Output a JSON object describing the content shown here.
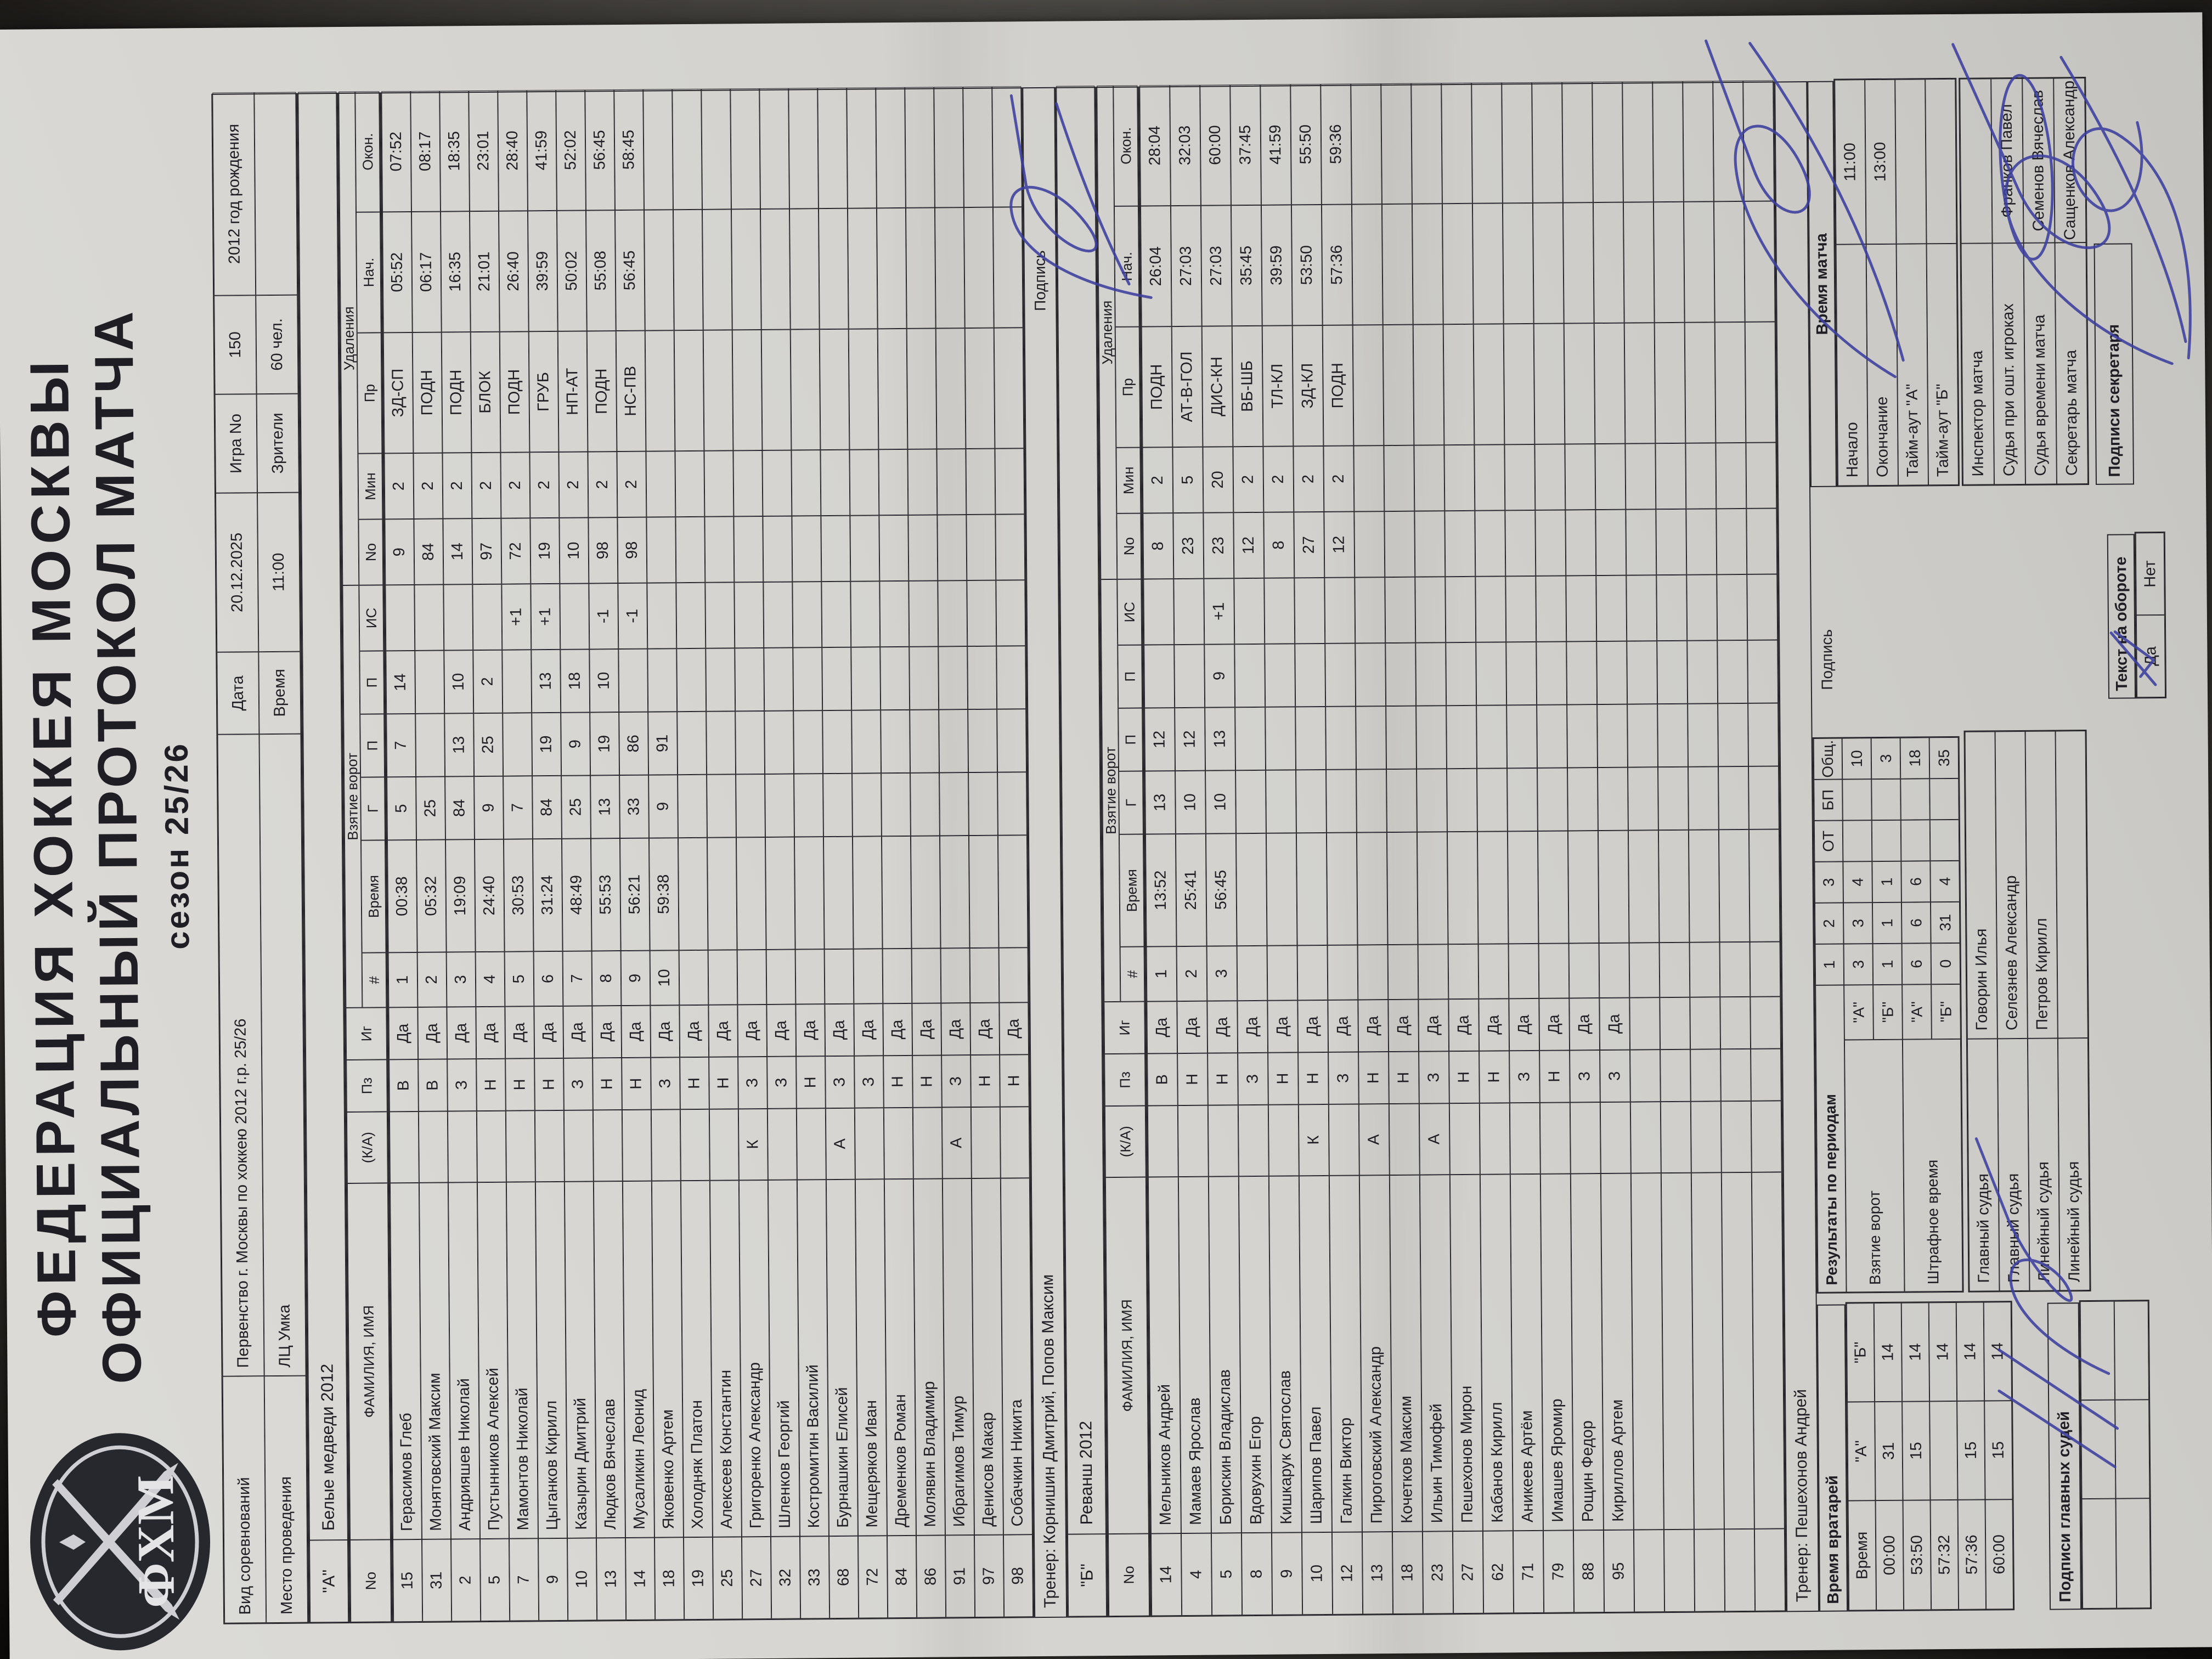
{
  "header": {
    "federation": "ФЕДЕРАЦИЯ ХОККЕЯ МОСКВЫ",
    "protocol": "ОФИЦИАЛЬНЫЙ ПРОТОКОЛ МАТЧА",
    "season": "сезон 25/26",
    "logo": "ФХМ"
  },
  "info": {
    "rows": [
      [
        "Вид соревнований",
        "Первенство г. Москвы по хоккею 2012 г.р. 25/26",
        "Дата",
        "20.12.2025",
        "Игра No",
        "150",
        "2012 год рождения"
      ],
      [
        "Место проведения",
        "ЛЦ Умка",
        "Время",
        "11:00",
        "Зрители",
        "60 чел.",
        ""
      ]
    ]
  },
  "columns": {
    "no": "No",
    "name": "ФАМИЛИЯ, ИМЯ",
    "ka": "(К/А)",
    "pz": "Пз",
    "ig": "Иг",
    "num": "#",
    "time": "Время",
    "g": "Г",
    "p1": "П",
    "p2": "П",
    "is": "ИС",
    "ud_no": "No",
    "min": "Мин",
    "pr": "Пр",
    "nach": "Нач.",
    "okon": "Окон.",
    "goals_group": "Взятие ворот",
    "penalties_group": "Удаления"
  },
  "labels": {
    "sign": "Подпись"
  },
  "team_a": {
    "letter": "\"А\"",
    "name": "Белые медведи 2012",
    "trainer": "Тренер: Корнишин Дмитрий, Попов Максим",
    "players": [
      [
        "15",
        "Герасимов Глеб",
        "",
        "В",
        "Да",
        "1",
        "00:38",
        "5",
        "7",
        "14",
        "",
        "9",
        "2",
        "ЗД-СП",
        "05:52",
        "07:52"
      ],
      [
        "31",
        "Монятовский Максим",
        "",
        "В",
        "Да",
        "2",
        "05:32",
        "25",
        "",
        "",
        "",
        "84",
        "2",
        "ПОДН",
        "06:17",
        "08:17"
      ],
      [
        "2",
        "Андрияшев Николай",
        "",
        "З",
        "Да",
        "3",
        "19:09",
        "84",
        "13",
        "10",
        "",
        "14",
        "2",
        "ПОДН",
        "16:35",
        "18:35"
      ],
      [
        "5",
        "Пустынников Алексей",
        "",
        "Н",
        "Да",
        "4",
        "24:40",
        "9",
        "25",
        "2",
        "",
        "97",
        "2",
        "БЛОК",
        "21:01",
        "23:01"
      ],
      [
        "7",
        "Мамонтов Николай",
        "",
        "Н",
        "Да",
        "5",
        "30:53",
        "7",
        "",
        "",
        "+1",
        "72",
        "2",
        "ПОДН",
        "26:40",
        "28:40"
      ],
      [
        "9",
        "Цыганков Кирилл",
        "",
        "Н",
        "Да",
        "6",
        "31:24",
        "84",
        "19",
        "13",
        "+1",
        "19",
        "2",
        "ГРУБ",
        "39:59",
        "41:59"
      ],
      [
        "10",
        "Казырин Дмитрий",
        "",
        "З",
        "Да",
        "7",
        "48:49",
        "25",
        "9",
        "18",
        "",
        "10",
        "2",
        "НП-АТ",
        "50:02",
        "52:02"
      ],
      [
        "13",
        "Людков Вячеслав",
        "",
        "Н",
        "Да",
        "8",
        "55:53",
        "13",
        "19",
        "10",
        "-1",
        "98",
        "2",
        "ПОДН",
        "55:08",
        "56:45"
      ],
      [
        "14",
        "Мусаликин Леонид",
        "",
        "Н",
        "Да",
        "9",
        "56:21",
        "33",
        "86",
        "",
        "-1",
        "98",
        "2",
        "НС-ПВ",
        "56:45",
        "58:45"
      ],
      [
        "18",
        "Яковенко Артем",
        "",
        "З",
        "Да",
        "10",
        "59:38",
        "9",
        "91",
        "",
        "",
        "",
        "",
        "",
        "",
        ""
      ],
      [
        "19",
        "Холодняк Платон",
        "",
        "Н",
        "Да",
        "",
        "",
        "",
        "",
        "",
        "",
        "",
        "",
        "",
        "",
        ""
      ],
      [
        "25",
        "Алексеев Константин",
        "",
        "Н",
        "Да",
        "",
        "",
        "",
        "",
        "",
        "",
        "",
        "",
        "",
        "",
        ""
      ],
      [
        "27",
        "Григоренко Александр",
        "К",
        "З",
        "Да",
        "",
        "",
        "",
        "",
        "",
        "",
        "",
        "",
        "",
        "",
        ""
      ],
      [
        "32",
        "Шленков Георгий",
        "",
        "З",
        "Да",
        "",
        "",
        "",
        "",
        "",
        "",
        "",
        "",
        "",
        "",
        ""
      ],
      [
        "33",
        "Костромитин Василий",
        "",
        "Н",
        "Да",
        "",
        "",
        "",
        "",
        "",
        "",
        "",
        "",
        "",
        "",
        ""
      ],
      [
        "68",
        "Бурнашкин Елисей",
        "А",
        "З",
        "Да",
        "",
        "",
        "",
        "",
        "",
        "",
        "",
        "",
        "",
        "",
        ""
      ],
      [
        "72",
        "Мещеряков Иван",
        "",
        "З",
        "Да",
        "",
        "",
        "",
        "",
        "",
        "",
        "",
        "",
        "",
        "",
        ""
      ],
      [
        "84",
        "Дременков Роман",
        "",
        "Н",
        "Да",
        "",
        "",
        "",
        "",
        "",
        "",
        "",
        "",
        "",
        "",
        ""
      ],
      [
        "86",
        "Молявин Владимир",
        "",
        "Н",
        "Да",
        "",
        "",
        "",
        "",
        "",
        "",
        "",
        "",
        "",
        "",
        ""
      ],
      [
        "91",
        "Ибрагимов Тимур",
        "А",
        "З",
        "Да",
        "",
        "",
        "",
        "",
        "",
        "",
        "",
        "",
        "",
        "",
        ""
      ],
      [
        "97",
        "Денисов Макар",
        "",
        "Н",
        "Да",
        "",
        "",
        "",
        "",
        "",
        "",
        "",
        "",
        "",
        "",
        ""
      ],
      [
        "98",
        "Собачкин Никита",
        "",
        "Н",
        "Да",
        "",
        "",
        "",
        "",
        "",
        "",
        "",
        "",
        "",
        "",
        ""
      ]
    ]
  },
  "team_b": {
    "letter": "\"Б\"",
    "name": "Реванш 2012",
    "trainer": "Тренер: Пешехонов Андрей",
    "players": [
      [
        "14",
        "Мельников Андрей",
        "",
        "В",
        "Да",
        "1",
        "13:52",
        "13",
        "12",
        "",
        "",
        "8",
        "2",
        "ПОДН",
        "26:04",
        "28:04"
      ],
      [
        "4",
        "Мамаев Ярослав",
        "",
        "Н",
        "Да",
        "2",
        "25:41",
        "10",
        "12",
        "",
        "",
        "23",
        "5",
        "АТ-В-ГОЛ",
        "27:03",
        "32:03"
      ],
      [
        "5",
        "Борискин Владислав",
        "",
        "Н",
        "Да",
        "3",
        "56:45",
        "10",
        "13",
        "9",
        "+1",
        "23",
        "20",
        "ДИС-КН",
        "27:03",
        "60:00"
      ],
      [
        "8",
        "Вдовухин Егор",
        "",
        "З",
        "Да",
        "",
        "",
        "",
        "",
        "",
        "",
        "12",
        "2",
        "ВБ-ШБ",
        "35:45",
        "37:45"
      ],
      [
        "9",
        "Кишкарук Святослав",
        "",
        "Н",
        "Да",
        "",
        "",
        "",
        "",
        "",
        "",
        "8",
        "2",
        "ТЛ-КЛ",
        "39:59",
        "41:59"
      ],
      [
        "10",
        "Шарипов Павел",
        "К",
        "Н",
        "Да",
        "",
        "",
        "",
        "",
        "",
        "",
        "27",
        "2",
        "ЗД-КЛ",
        "53:50",
        "55:50"
      ],
      [
        "12",
        "Галкин Виктор",
        "",
        "З",
        "Да",
        "",
        "",
        "",
        "",
        "",
        "",
        "12",
        "2",
        "ПОДН",
        "57:36",
        "59:36"
      ],
      [
        "13",
        "Пироговский Александр",
        "А",
        "Н",
        "Да",
        "",
        "",
        "",
        "",
        "",
        "",
        "",
        "",
        "",
        "",
        ""
      ],
      [
        "18",
        "Кочетков Максим",
        "",
        "Н",
        "Да",
        "",
        "",
        "",
        "",
        "",
        "",
        "",
        "",
        "",
        "",
        ""
      ],
      [
        "23",
        "Ильин Тимофей",
        "А",
        "З",
        "Да",
        "",
        "",
        "",
        "",
        "",
        "",
        "",
        "",
        "",
        "",
        ""
      ],
      [
        "27",
        "Пешехонов Мирон",
        "",
        "Н",
        "Да",
        "",
        "",
        "",
        "",
        "",
        "",
        "",
        "",
        "",
        "",
        ""
      ],
      [
        "62",
        "Кабанов Кирилл",
        "",
        "Н",
        "Да",
        "",
        "",
        "",
        "",
        "",
        "",
        "",
        "",
        "",
        "",
        ""
      ],
      [
        "71",
        "Аникеев Артём",
        "",
        "З",
        "Да",
        "",
        "",
        "",
        "",
        "",
        "",
        "",
        "",
        "",
        "",
        ""
      ],
      [
        "79",
        "Имашев Яромир",
        "",
        "Н",
        "Да",
        "",
        "",
        "",
        "",
        "",
        "",
        "",
        "",
        "",
        "",
        ""
      ],
      [
        "88",
        "Рощин Федор",
        "",
        "З",
        "Да",
        "",
        "",
        "",
        "",
        "",
        "",
        "",
        "",
        "",
        "",
        ""
      ],
      [
        "95",
        "Кириллов Артем",
        "",
        "З",
        "Да",
        "",
        "",
        "",
        "",
        "",
        "",
        "",
        "",
        "",
        "",
        ""
      ],
      [
        "",
        "",
        "",
        "",
        "",
        "",
        "",
        "",
        "",
        "",
        "",
        "",
        "",
        "",
        "",
        ""
      ],
      [
        "",
        "",
        "",
        "",
        "",
        "",
        "",
        "",
        "",
        "",
        "",
        "",
        "",
        "",
        "",
        ""
      ],
      [
        "",
        "",
        "",
        "",
        "",
        "",
        "",
        "",
        "",
        "",
        "",
        "",
        "",
        "",
        "",
        ""
      ],
      [
        "",
        "",
        "",
        "",
        "",
        "",
        "",
        "",
        "",
        "",
        "",
        "",
        "",
        "",
        "",
        ""
      ],
      [
        "",
        "",
        "",
        "",
        "",
        "",
        "",
        "",
        "",
        "",
        "",
        "",
        "",
        "",
        "",
        ""
      ]
    ]
  },
  "bottom": {
    "goalies": {
      "title": "Время вратарей",
      "rows": [
        [
          "Время",
          "\"А\"",
          "\"Б\""
        ],
        [
          "00:00",
          "31",
          "14"
        ],
        [
          "53:50",
          "15",
          "14"
        ],
        [
          "57:32",
          "",
          "14"
        ],
        [
          "57:36",
          "15",
          "14"
        ],
        [
          "60:00",
          "15",
          "14"
        ]
      ]
    },
    "empty_rows": [
      [
        "",
        "",
        ""
      ],
      [
        "",
        "",
        ""
      ]
    ],
    "results": {
      "title": "Результаты по периодам",
      "periods": [
        "1",
        "2",
        "3",
        "ОТ",
        "БП",
        "Общ."
      ],
      "goals_label": "Взятие ворот",
      "pen_label": "Штрафное время",
      "team_a": "\"А\"",
      "team_b": "\"Б\"",
      "goals_a": [
        "3",
        "3",
        "4",
        "",
        "",
        "10"
      ],
      "goals_b": [
        "1",
        "1",
        "1",
        "",
        "",
        "3"
      ],
      "pen_a": [
        "6",
        "6",
        "6",
        "",
        "",
        "18"
      ],
      "pen_b": [
        "0",
        "31",
        "4",
        "",
        "",
        "35"
      ]
    },
    "referees": [
      [
        "Главный судья",
        "Говорин Илья"
      ],
      [
        "Главный судья",
        "Селезнев Александр"
      ],
      [
        "Линейный судья",
        "Петров Кирилл"
      ],
      [
        "Линейный судья",
        ""
      ]
    ],
    "match_time": {
      "title": "Время матча",
      "rows": [
        [
          "Начало",
          "11:00"
        ],
        [
          "Окончание",
          "13:00"
        ],
        [
          "Тайм-аут \"А\"",
          ""
        ],
        [
          "Тайм-аут \"Б\"",
          ""
        ]
      ]
    },
    "officials": [
      [
        "Инспектор матча",
        ""
      ],
      [
        "Судья при ошт. игроках",
        "Франков Павел"
      ],
      [
        "Судья времени матча",
        "Семенов Вячеслав"
      ],
      [
        "Секретарь матча",
        "Сащенков Александр"
      ]
    ],
    "signatures": {
      "judges": "Подписи главных судей",
      "secretary": "Подписи секретаря"
    },
    "back_text": {
      "label": "Текст на обороте",
      "options": [
        [
          "Да",
          "Нет"
        ]
      ]
    }
  },
  "ink_color": "#3c3f9e"
}
